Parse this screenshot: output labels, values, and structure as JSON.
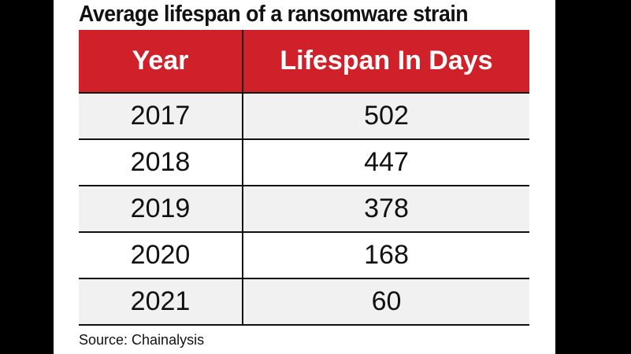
{
  "chart_data": {
    "type": "table",
    "title": "Average lifespan of a ransomware strain",
    "columns": [
      "Year",
      "Lifespan In Days"
    ],
    "rows": [
      {
        "year": "2017",
        "days": "502"
      },
      {
        "year": "2018",
        "days": "447"
      },
      {
        "year": "2019",
        "days": "378"
      },
      {
        "year": "2020",
        "days": "168"
      },
      {
        "year": "2021",
        "days": "60"
      }
    ],
    "source": "Source: Chainalysis",
    "header_color": "#d0202a"
  }
}
